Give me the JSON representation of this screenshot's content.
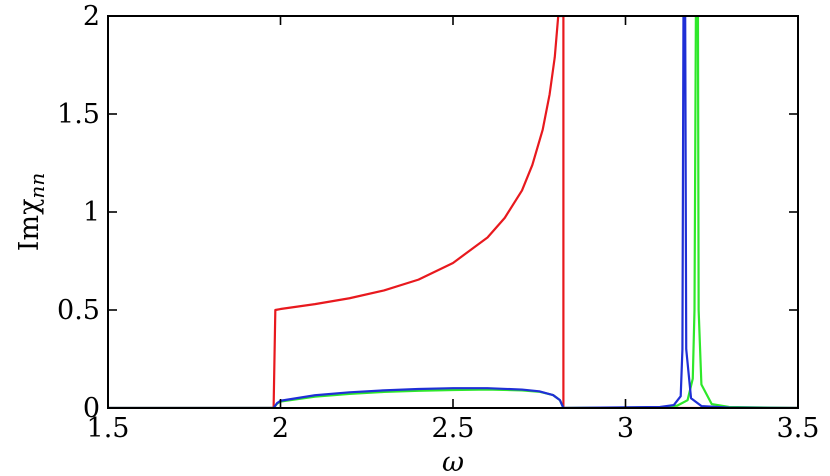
{
  "chart_data": {
    "type": "line",
    "xlabel": "ω",
    "ylabel": "Imχ",
    "ylabel_subscript": "nn",
    "xlim": [
      1.5,
      3.5
    ],
    "ylim": [
      0,
      2
    ],
    "grid": false,
    "legend": "none",
    "x_ticks": [
      1.5,
      2,
      2.5,
      3,
      3.5
    ],
    "x_tick_labels": [
      "1.5",
      "2",
      "2.5",
      "3",
      "3.5"
    ],
    "y_ticks": [
      0,
      0.5,
      1,
      1.5,
      2
    ],
    "y_tick_labels": [
      "0",
      "0.5",
      "1",
      "1.5",
      "2"
    ],
    "series": [
      {
        "color": "#e8191e",
        "points": [
          [
            1.5,
            0
          ],
          [
            1.98,
            0
          ],
          [
            1.985,
            0.5
          ],
          [
            2.0,
            0.505
          ],
          [
            2.1,
            0.53
          ],
          [
            2.2,
            0.56
          ],
          [
            2.3,
            0.6
          ],
          [
            2.4,
            0.655
          ],
          [
            2.5,
            0.74
          ],
          [
            2.6,
            0.87
          ],
          [
            2.65,
            0.97
          ],
          [
            2.7,
            1.11
          ],
          [
            2.73,
            1.24
          ],
          [
            2.76,
            1.42
          ],
          [
            2.78,
            1.6
          ],
          [
            2.795,
            1.79
          ],
          [
            2.805,
            2.0
          ],
          [
            2.82,
            2.0
          ],
          [
            2.82,
            0
          ],
          [
            3.5,
            0
          ]
        ]
      },
      {
        "color": "#2ee82a",
        "points": [
          [
            1.5,
            0
          ],
          [
            1.98,
            0
          ],
          [
            1.99,
            0.022
          ],
          [
            2.0,
            0.033
          ],
          [
            2.1,
            0.058
          ],
          [
            2.2,
            0.072
          ],
          [
            2.3,
            0.082
          ],
          [
            2.4,
            0.088
          ],
          [
            2.5,
            0.092
          ],
          [
            2.6,
            0.094
          ],
          [
            2.7,
            0.09
          ],
          [
            2.75,
            0.083
          ],
          [
            2.79,
            0.066
          ],
          [
            2.81,
            0.04
          ],
          [
            2.82,
            0
          ],
          [
            3.1,
            0.004
          ],
          [
            3.15,
            0.012
          ],
          [
            3.18,
            0.04
          ],
          [
            3.195,
            0.15
          ],
          [
            3.2,
            0.5
          ],
          [
            3.204,
            2.0
          ],
          [
            3.21,
            2.0
          ],
          [
            3.212,
            0.5
          ],
          [
            3.22,
            0.12
          ],
          [
            3.25,
            0.02
          ],
          [
            3.3,
            0.005
          ],
          [
            3.5,
            0
          ]
        ]
      },
      {
        "color": "#1f2fd6",
        "points": [
          [
            1.5,
            0
          ],
          [
            1.98,
            0
          ],
          [
            1.99,
            0.025
          ],
          [
            2.0,
            0.037
          ],
          [
            2.1,
            0.065
          ],
          [
            2.2,
            0.08
          ],
          [
            2.3,
            0.09
          ],
          [
            2.4,
            0.097
          ],
          [
            2.5,
            0.101
          ],
          [
            2.6,
            0.101
          ],
          [
            2.7,
            0.094
          ],
          [
            2.75,
            0.085
          ],
          [
            2.79,
            0.066
          ],
          [
            2.81,
            0.04
          ],
          [
            2.82,
            0
          ],
          [
            3.1,
            0.005
          ],
          [
            3.14,
            0.015
          ],
          [
            3.16,
            0.06
          ],
          [
            3.165,
            0.3
          ],
          [
            3.168,
            2.0
          ],
          [
            3.173,
            2.0
          ],
          [
            3.176,
            0.3
          ],
          [
            3.19,
            0.05
          ],
          [
            3.22,
            0.01
          ],
          [
            3.3,
            0.002
          ],
          [
            3.5,
            0
          ]
        ]
      }
    ]
  }
}
